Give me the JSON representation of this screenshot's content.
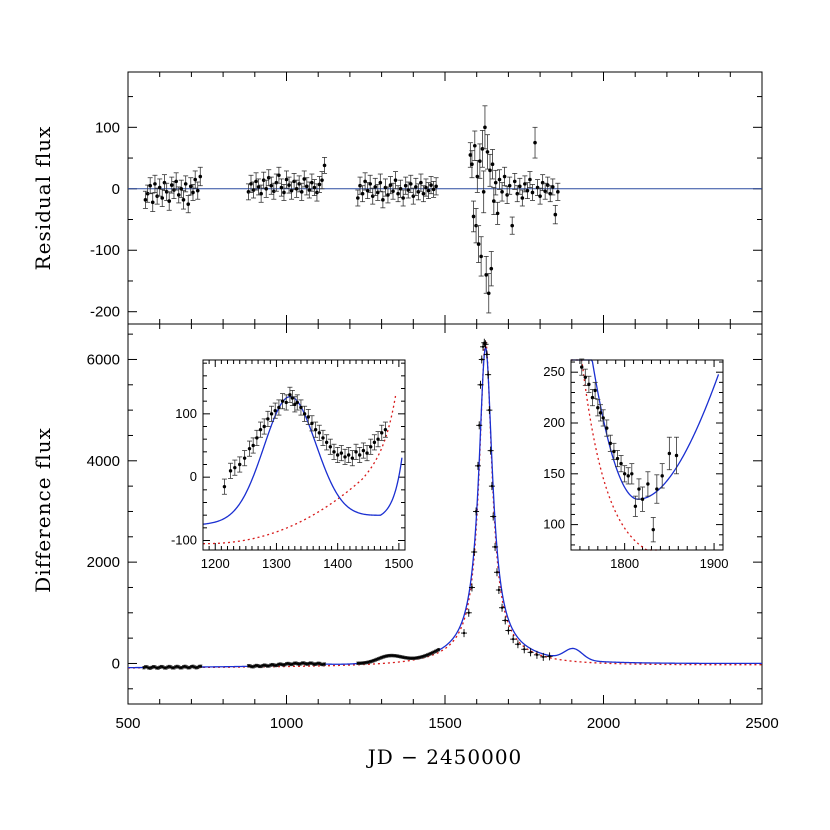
{
  "chart_data": [
    {
      "type": "scatter",
      "panel": "top",
      "xlabel": "",
      "ylabel": "Residual flux",
      "xlim": [
        500,
        2500
      ],
      "ylim": [
        -220,
        190
      ],
      "x_ticks": [
        500,
        1000,
        1500,
        2000,
        2500
      ],
      "y_ticks": [
        -200,
        -100,
        0,
        100
      ],
      "y_tick_labels": [
        "-200",
        "-100",
        "0",
        "100"
      ],
      "zero_line_color": "#2b4ba0",
      "points": [
        [
          555,
          -18,
          14
        ],
        [
          562,
          -8,
          14
        ],
        [
          570,
          5,
          13
        ],
        [
          578,
          -22,
          15
        ],
        [
          585,
          8,
          14
        ],
        [
          592,
          -12,
          13
        ],
        [
          600,
          2,
          14
        ],
        [
          608,
          -15,
          14
        ],
        [
          615,
          10,
          13
        ],
        [
          622,
          -5,
          14
        ],
        [
          630,
          -20,
          15
        ],
        [
          638,
          6,
          13
        ],
        [
          645,
          -2,
          14
        ],
        [
          652,
          12,
          14
        ],
        [
          660,
          -10,
          13
        ],
        [
          668,
          0,
          14
        ],
        [
          675,
          -18,
          15
        ],
        [
          682,
          8,
          13
        ],
        [
          690,
          -25,
          14
        ],
        [
          698,
          4,
          14
        ],
        [
          705,
          -6,
          13
        ],
        [
          712,
          15,
          14
        ],
        [
          720,
          -3,
          14
        ],
        [
          728,
          20,
          15
        ],
        [
          880,
          -5,
          13
        ],
        [
          888,
          8,
          14
        ],
        [
          896,
          -2,
          13
        ],
        [
          904,
          12,
          14
        ],
        [
          912,
          3,
          13
        ],
        [
          920,
          -8,
          14
        ],
        [
          928,
          14,
          13
        ],
        [
          936,
          0,
          14
        ],
        [
          944,
          18,
          13
        ],
        [
          952,
          5,
          14
        ],
        [
          960,
          -4,
          13
        ],
        [
          968,
          10,
          14
        ],
        [
          976,
          22,
          13
        ],
        [
          984,
          2,
          14
        ],
        [
          992,
          -6,
          13
        ],
        [
          1000,
          15,
          14
        ],
        [
          1008,
          6,
          13
        ],
        [
          1016,
          -3,
          14
        ],
        [
          1024,
          12,
          13
        ],
        [
          1032,
          0,
          14
        ],
        [
          1040,
          8,
          13
        ],
        [
          1048,
          -5,
          14
        ],
        [
          1056,
          16,
          13
        ],
        [
          1064,
          4,
          14
        ],
        [
          1072,
          -2,
          13
        ],
        [
          1080,
          10,
          14
        ],
        [
          1088,
          2,
          13
        ],
        [
          1096,
          -6,
          14
        ],
        [
          1104,
          7,
          13
        ],
        [
          1112,
          14,
          14
        ],
        [
          1120,
          38,
          13
        ],
        [
          1225,
          -15,
          13
        ],
        [
          1232,
          5,
          14
        ],
        [
          1240,
          -8,
          13
        ],
        [
          1248,
          12,
          14
        ],
        [
          1256,
          -3,
          13
        ],
        [
          1264,
          8,
          14
        ],
        [
          1272,
          -12,
          13
        ],
        [
          1280,
          3,
          14
        ],
        [
          1288,
          -6,
          13
        ],
        [
          1296,
          10,
          14
        ],
        [
          1304,
          -18,
          13
        ],
        [
          1312,
          2,
          14
        ],
        [
          1320,
          -10,
          13
        ],
        [
          1328,
          6,
          14
        ],
        [
          1336,
          -4,
          13
        ],
        [
          1344,
          14,
          14
        ],
        [
          1352,
          -8,
          13
        ],
        [
          1360,
          0,
          14
        ],
        [
          1368,
          -15,
          13
        ],
        [
          1376,
          5,
          14
        ],
        [
          1384,
          -2,
          13
        ],
        [
          1392,
          8,
          14
        ],
        [
          1400,
          -12,
          13
        ],
        [
          1408,
          3,
          14
        ],
        [
          1416,
          -5,
          13
        ],
        [
          1424,
          10,
          14
        ],
        [
          1432,
          -8,
          13
        ],
        [
          1440,
          2,
          14
        ],
        [
          1448,
          -3,
          13
        ],
        [
          1456,
          6,
          14
        ],
        [
          1464,
          -1,
          13
        ],
        [
          1472,
          4,
          14
        ],
        [
          1580,
          55,
          20
        ],
        [
          1585,
          40,
          22
        ],
        [
          1590,
          -45,
          25
        ],
        [
          1594,
          70,
          24
        ],
        [
          1598,
          -60,
          28
        ],
        [
          1602,
          20,
          26
        ],
        [
          1606,
          -90,
          30
        ],
        [
          1610,
          45,
          28
        ],
        [
          1614,
          -110,
          32
        ],
        [
          1618,
          65,
          30
        ],
        [
          1622,
          -5,
          34
        ],
        [
          1626,
          100,
          35
        ],
        [
          1630,
          -140,
          30
        ],
        [
          1634,
          60,
          28
        ],
        [
          1638,
          -170,
          32
        ],
        [
          1642,
          30,
          26
        ],
        [
          1646,
          -130,
          28
        ],
        [
          1650,
          40,
          24
        ],
        [
          1654,
          -20,
          22
        ],
        [
          1660,
          10,
          20
        ],
        [
          1666,
          -40,
          18
        ],
        [
          1672,
          15,
          16
        ],
        [
          1680,
          -5,
          15
        ],
        [
          1688,
          20,
          15
        ],
        [
          1696,
          -10,
          14
        ],
        [
          1704,
          5,
          14
        ],
        [
          1712,
          -60,
          14
        ],
        [
          1720,
          12,
          13
        ],
        [
          1728,
          -8,
          13
        ],
        [
          1736,
          4,
          13
        ],
        [
          1744,
          -15,
          13
        ],
        [
          1752,
          8,
          13
        ],
        [
          1760,
          -3,
          13
        ],
        [
          1768,
          15,
          13
        ],
        [
          1776,
          -6,
          13
        ],
        [
          1784,
          75,
          25
        ],
        [
          1792,
          2,
          13
        ],
        [
          1800,
          -12,
          13
        ],
        [
          1808,
          10,
          13
        ],
        [
          1816,
          -4,
          13
        ],
        [
          1824,
          6,
          13
        ],
        [
          1832,
          -8,
          13
        ],
        [
          1840,
          3,
          13
        ],
        [
          1848,
          -42,
          15
        ],
        [
          1856,
          -5,
          14
        ]
      ]
    },
    {
      "type": "scatter",
      "panel": "bottom",
      "xlabel": "JD − 2450000",
      "ylabel": "Difference flux",
      "xlim": [
        500,
        2500
      ],
      "ylim": [
        -800,
        6700
      ],
      "x_ticks": [
        500,
        1000,
        1500,
        2000,
        2500
      ],
      "x_tick_labels": [
        "500",
        "1000",
        "1500",
        "2000",
        "2500"
      ],
      "y_ticks": [
        0,
        2000,
        4000,
        6000
      ],
      "y_tick_labels": [
        "0",
        "2000",
        "4000",
        "6000"
      ],
      "series": [
        {
          "name": "",
          "style": "solid",
          "color": "#1a2fd1"
        },
        {
          "name": "",
          "style": "dotted",
          "color": "#d81b1b"
        }
      ],
      "peak_points": [
        [
          1560,
          600
        ],
        [
          1575,
          1000
        ],
        [
          1585,
          1500
        ],
        [
          1592,
          2200
        ],
        [
          1598,
          3000
        ],
        [
          1604,
          3900
        ],
        [
          1608,
          4700
        ],
        [
          1612,
          5500
        ],
        [
          1616,
          6000
        ],
        [
          1620,
          6250
        ],
        [
          1624,
          6330
        ],
        [
          1628,
          6300
        ],
        [
          1632,
          6100
        ],
        [
          1636,
          5700
        ],
        [
          1640,
          5000
        ],
        [
          1644,
          4200
        ],
        [
          1648,
          3500
        ],
        [
          1652,
          2900
        ],
        [
          1658,
          2300
        ],
        [
          1664,
          1800
        ],
        [
          1670,
          1450
        ],
        [
          1680,
          1100
        ],
        [
          1690,
          850
        ],
        [
          1700,
          650
        ],
        [
          1715,
          480
        ],
        [
          1730,
          380
        ],
        [
          1750,
          280
        ],
        [
          1770,
          220
        ],
        [
          1790,
          170
        ],
        [
          1810,
          130
        ],
        [
          1830,
          140
        ]
      ]
    },
    {
      "type": "scatter",
      "panel": "inset-left",
      "xlabel": "",
      "ylabel": "",
      "xlim": [
        1180,
        1510
      ],
      "ylim": [
        -115,
        185
      ],
      "x_ticks": [
        1200,
        1300,
        1400,
        1500
      ],
      "x_tick_labels": [
        "1200",
        "1300",
        "1400",
        "1500"
      ],
      "y_ticks": [
        -100,
        0,
        100
      ],
      "y_tick_labels": [
        "-100",
        "0",
        "100"
      ],
      "points": [
        [
          1215,
          -15,
          12
        ],
        [
          1225,
          10,
          12
        ],
        [
          1232,
          15,
          12
        ],
        [
          1240,
          20,
          12
        ],
        [
          1248,
          30,
          12
        ],
        [
          1256,
          45,
          12
        ],
        [
          1262,
          50,
          12
        ],
        [
          1268,
          62,
          12
        ],
        [
          1274,
          75,
          12
        ],
        [
          1280,
          80,
          12
        ],
        [
          1286,
          92,
          12
        ],
        [
          1292,
          100,
          12
        ],
        [
          1298,
          105,
          12
        ],
        [
          1304,
          110,
          12
        ],
        [
          1310,
          120,
          12
        ],
        [
          1316,
          118,
          12
        ],
        [
          1322,
          130,
          12
        ],
        [
          1326,
          125,
          12
        ],
        [
          1330,
          115,
          12
        ],
        [
          1334,
          118,
          12
        ],
        [
          1340,
          110,
          12
        ],
        [
          1346,
          100,
          12
        ],
        [
          1352,
          95,
          12
        ],
        [
          1358,
          85,
          12
        ],
        [
          1364,
          75,
          12
        ],
        [
          1370,
          70,
          12
        ],
        [
          1376,
          62,
          12
        ],
        [
          1382,
          55,
          12
        ],
        [
          1388,
          48,
          12
        ],
        [
          1394,
          40,
          12
        ],
        [
          1400,
          35,
          12
        ],
        [
          1406,
          38,
          12
        ],
        [
          1412,
          32,
          12
        ],
        [
          1418,
          35,
          12
        ],
        [
          1424,
          30,
          12
        ],
        [
          1430,
          40,
          12
        ],
        [
          1436,
          35,
          12
        ],
        [
          1442,
          42,
          12
        ],
        [
          1448,
          38,
          12
        ],
        [
          1454,
          48,
          12
        ],
        [
          1460,
          55,
          12
        ],
        [
          1466,
          60,
          12
        ],
        [
          1472,
          70,
          12
        ],
        [
          1478,
          75,
          12
        ]
      ]
    },
    {
      "type": "scatter",
      "panel": "inset-right",
      "xlabel": "",
      "ylabel": "",
      "xlim": [
        1740,
        1910
      ],
      "ylim": [
        75,
        262
      ],
      "x_ticks": [
        1800,
        1900
      ],
      "x_tick_labels": [
        "1800",
        "1900"
      ],
      "y_ticks": [
        100,
        150,
        200,
        250
      ],
      "y_tick_labels": [
        "100",
        "150",
        "200",
        "250"
      ],
      "points": [
        [
          1752,
          255,
          8
        ],
        [
          1756,
          245,
          8
        ],
        [
          1760,
          238,
          8
        ],
        [
          1764,
          225,
          8
        ],
        [
          1767,
          232,
          8
        ],
        [
          1770,
          215,
          8
        ],
        [
          1773,
          210,
          8
        ],
        [
          1776,
          205,
          8
        ],
        [
          1780,
          195,
          8
        ],
        [
          1784,
          180,
          8
        ],
        [
          1788,
          172,
          8
        ],
        [
          1792,
          165,
          8
        ],
        [
          1796,
          160,
          8
        ],
        [
          1800,
          150,
          8
        ],
        [
          1804,
          148,
          8
        ],
        [
          1808,
          150,
          10
        ],
        [
          1812,
          118,
          10
        ],
        [
          1816,
          135,
          10
        ],
        [
          1820,
          125,
          12
        ],
        [
          1826,
          140,
          12
        ],
        [
          1832,
          95,
          12
        ],
        [
          1836,
          135,
          14
        ],
        [
          1842,
          148,
          12
        ],
        [
          1850,
          170,
          16
        ],
        [
          1858,
          168,
          18
        ]
      ]
    }
  ]
}
